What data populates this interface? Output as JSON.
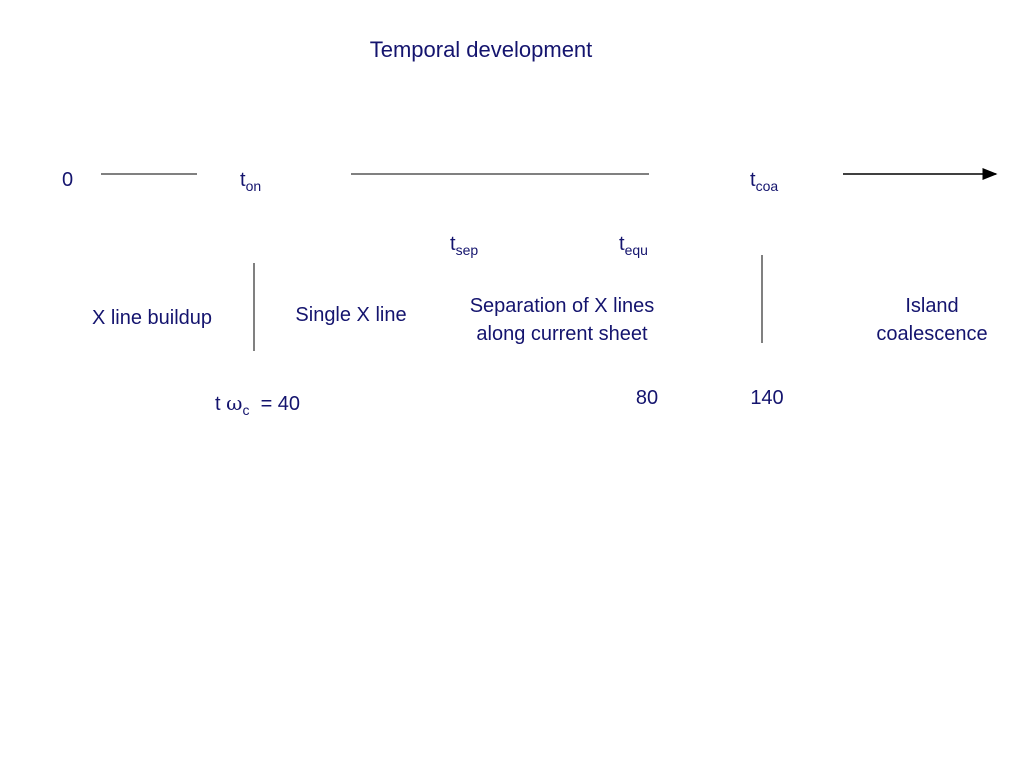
{
  "title": "Temporal development",
  "timeline": {
    "start": "0",
    "markers": [
      {
        "base": "t",
        "sub": "on"
      },
      {
        "base": "t",
        "sub": "sep"
      },
      {
        "base": "t",
        "sub": "equ"
      },
      {
        "base": "t",
        "sub": "coa"
      }
    ]
  },
  "phases": [
    {
      "lines": [
        "X line buildup"
      ]
    },
    {
      "lines": [
        "Single X line"
      ]
    },
    {
      "lines": [
        "Separation of X lines",
        "along current sheet"
      ]
    },
    {
      "lines": [
        "Island",
        "coalescence"
      ]
    }
  ],
  "times": {
    "label": {
      "t": "t",
      "omega": "ω",
      "sub": "c",
      "rest": "= 40"
    },
    "values": [
      "80",
      "140"
    ]
  }
}
